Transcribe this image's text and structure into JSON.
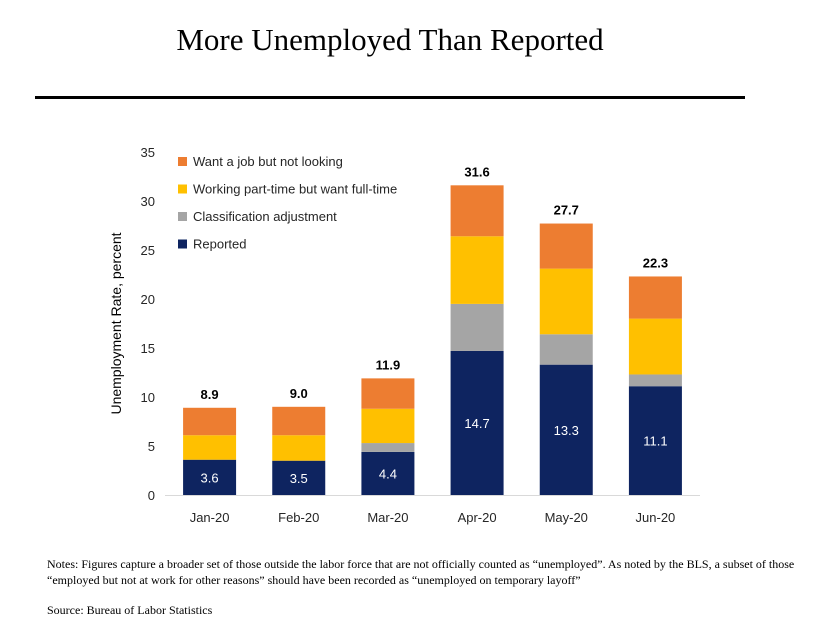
{
  "title": "More Unemployed Than Reported",
  "notes": "Notes: Figures capture a broader set of those outside the labor force that are not officially counted as “unemployed”. As noted by the BLS, a subset of those “employed but not at work for other reasons” should have been recorded as “unemployed on temporary layoff”",
  "source": "Source: Bureau of Labor Statistics",
  "chart_data": {
    "type": "bar",
    "stacked": true,
    "ylabel": "Unemployment Rate, percent",
    "ylim": [
      0,
      35
    ],
    "yticks": [
      0,
      5,
      10,
      15,
      20,
      25,
      30,
      35
    ],
    "grid": false,
    "legend_position": "top-left",
    "categories": [
      "Jan-20",
      "Feb-20",
      "Mar-20",
      "Apr-20",
      "May-20",
      "Jun-20"
    ],
    "series": [
      {
        "name": "Reported",
        "color": "#0e2460",
        "values": [
          3.6,
          3.5,
          4.4,
          14.7,
          13.3,
          11.1
        ]
      },
      {
        "name": "Classification adjustment",
        "color": "#a5a5a5",
        "values": [
          0.0,
          0.0,
          0.9,
          4.8,
          3.1,
          1.2
        ]
      },
      {
        "name": "Working part-time but want full-time",
        "color": "#ffc000",
        "values": [
          2.5,
          2.6,
          3.5,
          6.9,
          6.7,
          5.7
        ]
      },
      {
        "name": "Want a job but not looking",
        "color": "#ed7d31",
        "values": [
          2.8,
          2.9,
          3.1,
          5.2,
          4.6,
          4.3
        ]
      }
    ],
    "legend_order": [
      "Want a job but not looking",
      "Working part-time but want full-time",
      "Classification adjustment",
      "Reported"
    ],
    "totals": [
      "8.9",
      "9.0",
      "11.9",
      "31.6",
      "27.7",
      "22.3"
    ],
    "reported_labels": [
      "3.6",
      "3.5",
      "4.4",
      "14.7",
      "13.3",
      "11.1"
    ]
  }
}
